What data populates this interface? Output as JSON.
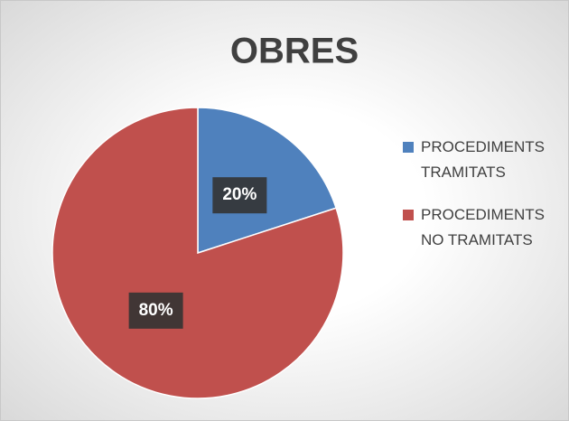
{
  "chart_data": {
    "type": "pie",
    "title": "OBRES",
    "categories": [
      "PROCEDIMENTS TRAMITATS",
      "PROCEDIMENTS NO TRAMITATS"
    ],
    "values": [
      20,
      80
    ],
    "value_labels": [
      "20%",
      "80%"
    ],
    "colors": [
      "#4f81bd",
      "#c0504d"
    ],
    "legend": "right"
  }
}
